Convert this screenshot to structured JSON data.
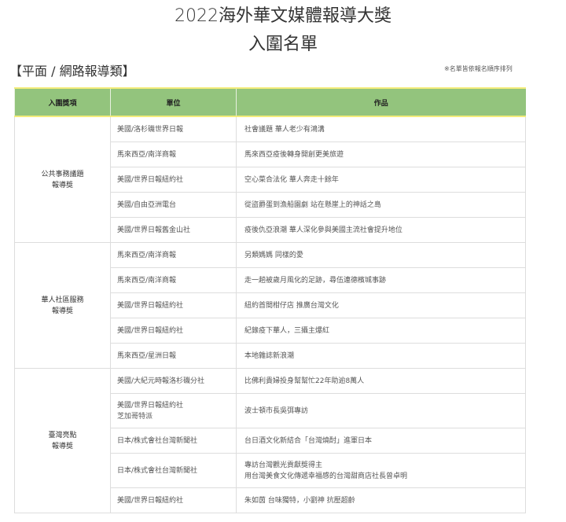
{
  "title": "2022海外華文媒體報導大獎",
  "subtitle": "入圍名單",
  "section": "【平面 / 網路報導類】",
  "note": "※名單皆依報名順序排列",
  "headers": [
    "入圍獎項",
    "單位",
    "作品"
  ],
  "header_color": "#93c47d",
  "groups": [
    {
      "category": [
        "公共事務議題",
        "報導獎"
      ],
      "rows": [
        {
          "unit": [
            "美國/洛杉磯世界日報"
          ],
          "work": [
            "社會議題 華人老少有鴻溝"
          ]
        },
        {
          "unit": [
            "馬來西亞/南洋商報"
          ],
          "work": [
            "馬來西亞疫後轉身開創更美旅遊"
          ]
        },
        {
          "unit": [
            "美國/世界日報紐約社"
          ],
          "work": [
            "空心菜合法化 華人奔走十餘年"
          ]
        },
        {
          "unit": [
            "美國/自由亞洲電台"
          ],
          "work": [
            "從盜爵蛋到漁船園劇 站在懸崖上的神話之島"
          ]
        },
        {
          "unit": [
            "美國/世界日報舊金山社"
          ],
          "work": [
            "疫後仇亞浪潮 華人深化參與美國主流社會提升地位"
          ]
        }
      ]
    },
    {
      "category": [
        "華人社區服務",
        "報導獎"
      ],
      "rows": [
        {
          "unit": [
            "馬來西亞/南洋商報"
          ],
          "work": [
            "另類媽媽 同樣的愛"
          ]
        },
        {
          "unit": [
            "馬來西亞/南洋商報"
          ],
          "work": [
            "走一趟被歲月風化的足跡，尋伍連德檳城事跡"
          ]
        },
        {
          "unit": [
            "美國/世界日報紐約社"
          ],
          "work": [
            "紐約首間柑仔店 推廣台灣文化"
          ]
        },
        {
          "unit": [
            "美國/世界日報紐約社"
          ],
          "work": [
            "紀錄疫下華人，三攝主爆紅"
          ]
        },
        {
          "unit": [
            "馬來西亞/星洲日報"
          ],
          "work": [
            "本地雜誌新浪潮"
          ]
        }
      ]
    },
    {
      "category": [
        "臺灣亮點",
        "報導獎"
      ],
      "rows": [
        {
          "unit": [
            "美國/大紀元時報洛杉磯分社"
          ],
          "work": [
            "比佛利貴婦投身幫幫忙22年助逾8萬人"
          ]
        },
        {
          "unit": [
            "美國/世界日報紐約社",
            "芝加哥特派"
          ],
          "work": [
            "波士頓市長吳弭專訪"
          ]
        },
        {
          "unit": [
            "日本/株式會社台灣新聞社"
          ],
          "work": [
            "台日酒文化新結合「台灣燒酎」進軍日本"
          ]
        },
        {
          "unit": [
            "日本/株式會社台灣新聞社"
          ],
          "work": [
            "專訪台灣觀光貢獻獎得主",
            "用台灣美食文化傳遞幸福感的台灣甜商店社長曾卓明"
          ]
        },
        {
          "unit": [
            "美國/世界日報紐約社"
          ],
          "work": [
            "朱如茵 台味獨特，小劉神 抗壓超齡"
          ]
        }
      ]
    }
  ]
}
